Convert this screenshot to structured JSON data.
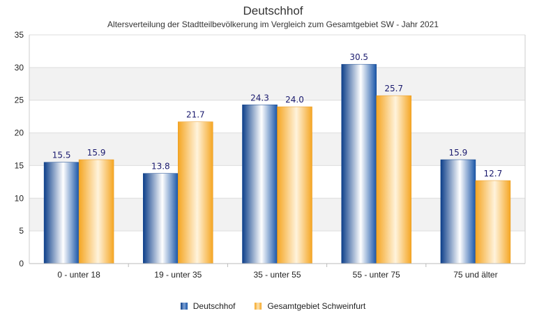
{
  "chart_data": {
    "type": "bar",
    "title": "Deutschhof",
    "subtitle": "Altersverteilung der Stadtteilbevölkerung im Vergleich zum Gesamtgebiet SW - Jahr 2021",
    "categories": [
      "0 - unter 18",
      "19 - unter 35",
      "35 - unter 55",
      "55 - unter 75",
      "75 und älter"
    ],
    "series": [
      {
        "name": "Deutschhof",
        "values": [
          15.5,
          13.8,
          24.3,
          30.5,
          15.9
        ],
        "color": "#1a56a8"
      },
      {
        "name": "Gesamtgebiet Schweinfurt",
        "values": [
          15.9,
          21.7,
          24.0,
          25.7,
          12.7
        ],
        "color": "#f5a623"
      }
    ],
    "data_labels": [
      [
        "15.5",
        "13.8",
        "24.3",
        "30.5",
        "15.9"
      ],
      [
        "15.9",
        "21.7",
        "24.0",
        "25.7",
        "12.7"
      ]
    ],
    "yticks": [
      "0",
      "5",
      "10",
      "15",
      "20",
      "25",
      "30",
      "35"
    ],
    "ylim": [
      0,
      35
    ],
    "grid": true,
    "legend_position": "bottom"
  }
}
